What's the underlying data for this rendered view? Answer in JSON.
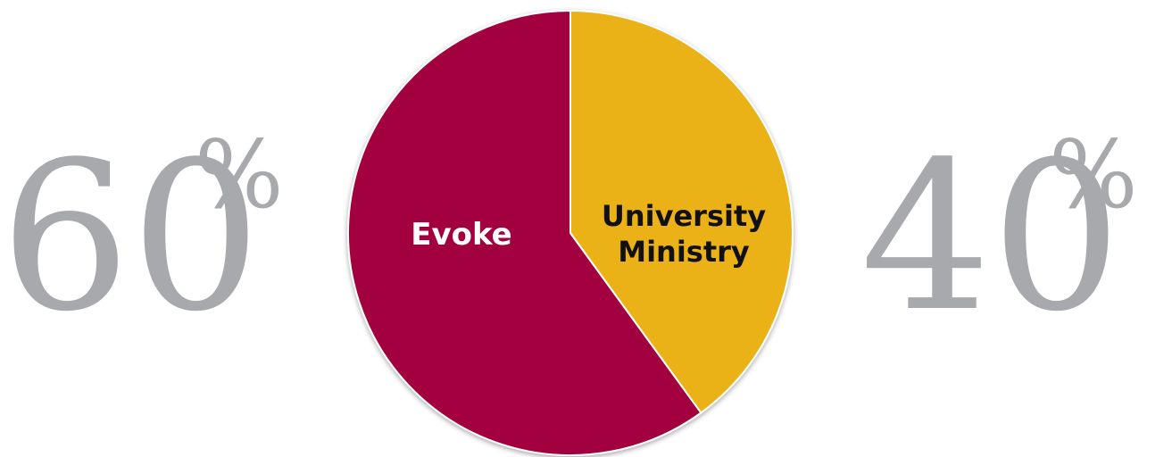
{
  "chart_data": {
    "type": "pie",
    "slices": [
      {
        "label": "Evoke",
        "value": 60,
        "color": "#a3003f",
        "label_color": "#ffffff"
      },
      {
        "label": "University Ministry",
        "label_lines": [
          "University",
          "Ministry"
        ],
        "value": 40,
        "color": "#eab213",
        "label_color": "#111111"
      }
    ],
    "percent_labels": [
      {
        "number": "60",
        "sign": "%"
      },
      {
        "number": "40",
        "sign": "%"
      }
    ]
  }
}
